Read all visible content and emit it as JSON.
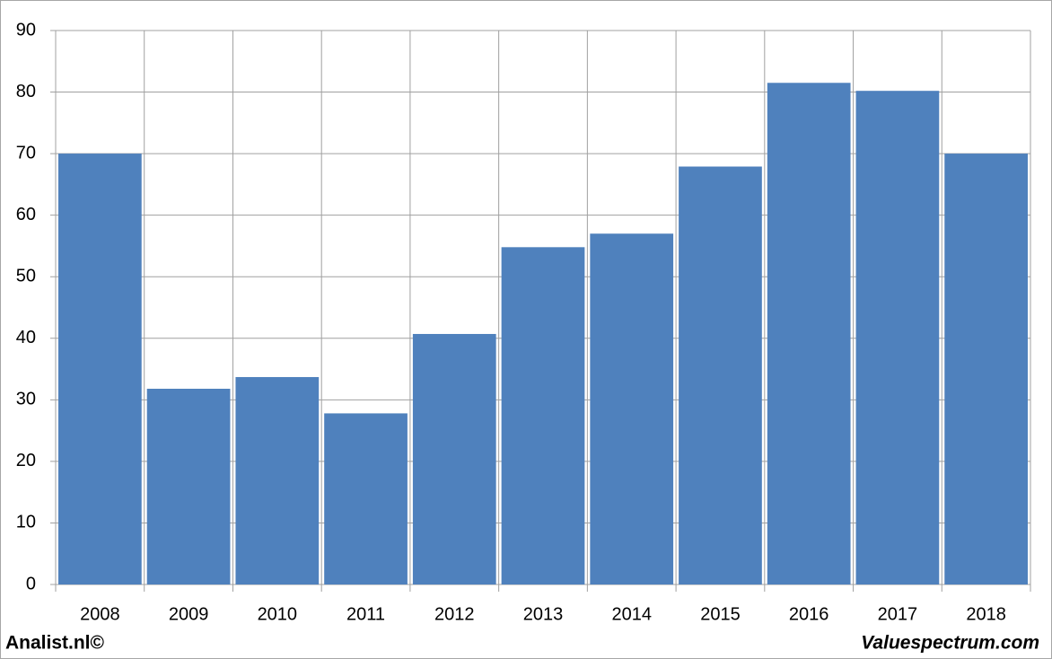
{
  "chart_data": {
    "type": "bar",
    "categories": [
      "2008",
      "2009",
      "2010",
      "2011",
      "2012",
      "2013",
      "2014",
      "2015",
      "2016",
      "2017",
      "2018"
    ],
    "values": [
      70,
      31.8,
      33.7,
      27.8,
      40.7,
      54.8,
      57,
      67.9,
      81.5,
      80.2,
      70
    ],
    "color": "#4f81bd",
    "ylim": [
      0,
      90
    ],
    "yticks": [
      0,
      10,
      20,
      30,
      40,
      50,
      60,
      70,
      80,
      90
    ],
    "grid": true
  },
  "footer": {
    "left": "Analist.nl©",
    "right": "Valuespectrum.com"
  }
}
